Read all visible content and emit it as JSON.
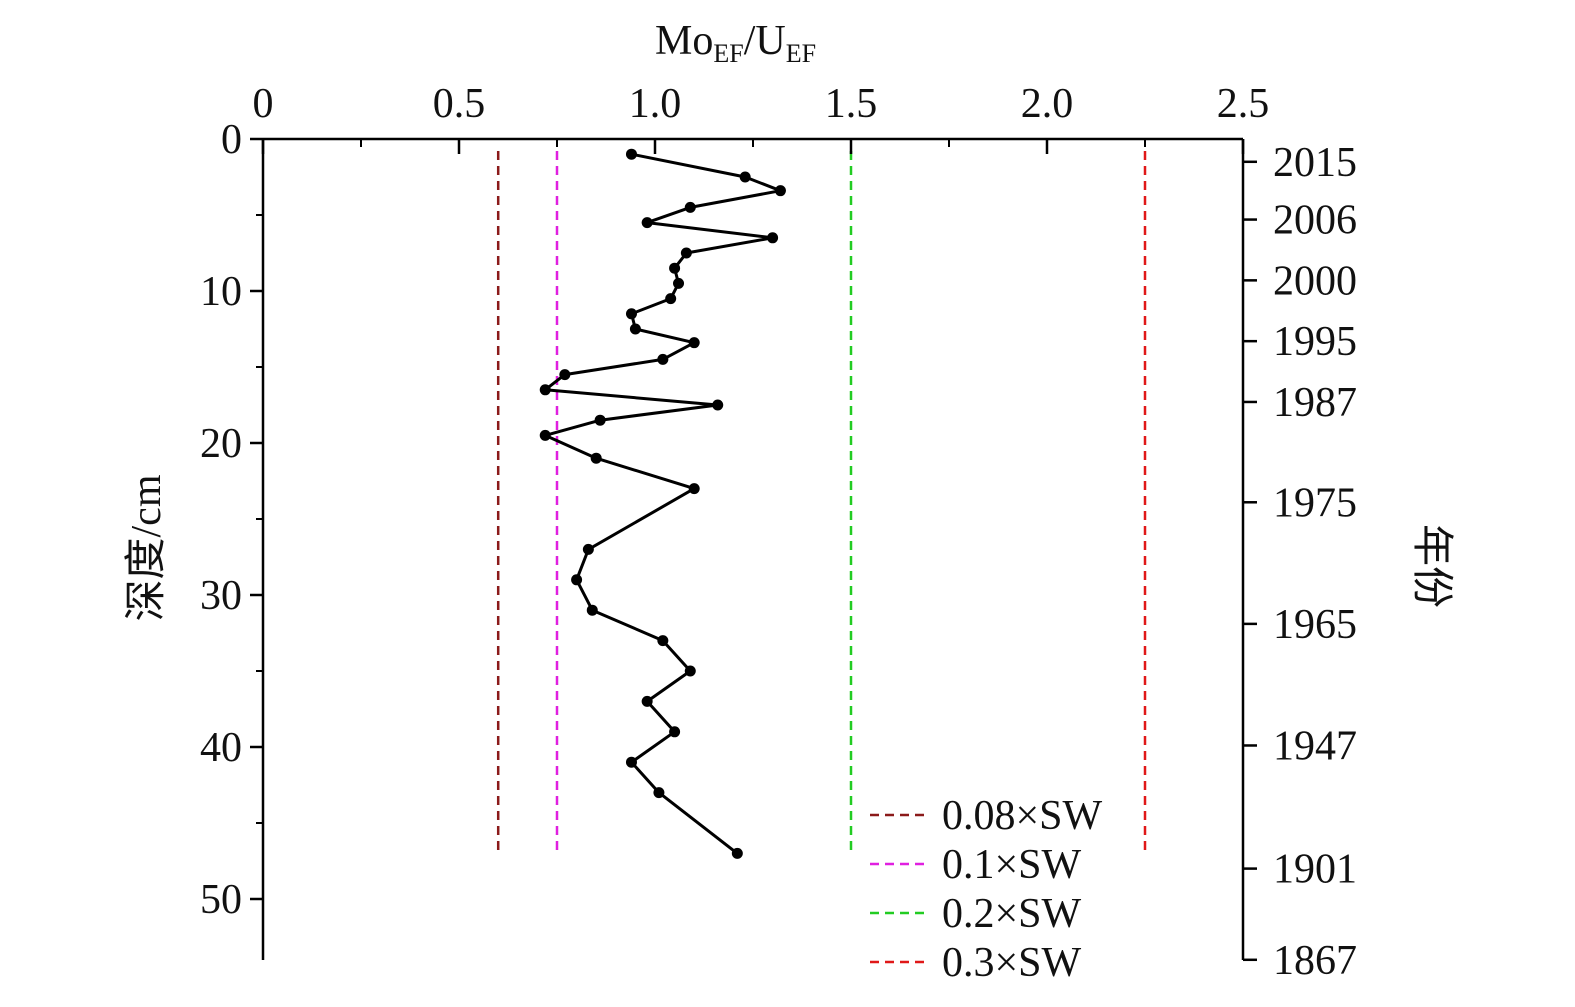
{
  "chart_data": {
    "type": "line",
    "xlabel": {
      "main": "Mo",
      "sub1": "EF",
      "sep": "/U",
      "sub2": "EF"
    },
    "ylabel": "深度/cm",
    "y2label": "年份",
    "xlim": [
      0,
      2.5
    ],
    "ylim": [
      0,
      54
    ],
    "x_ticks": [
      {
        "value": 0,
        "label": "0"
      },
      {
        "value": 0.5,
        "label": "0.5"
      },
      {
        "value": 1.0,
        "label": "1.0"
      },
      {
        "value": 1.5,
        "label": "1.5"
      },
      {
        "value": 2.0,
        "label": "2.0"
      },
      {
        "value": 2.5,
        "label": "2.5"
      }
    ],
    "y_ticks": [
      {
        "value": 0,
        "label": "0"
      },
      {
        "value": 10,
        "label": "10"
      },
      {
        "value": 20,
        "label": "20"
      },
      {
        "value": 30,
        "label": "30"
      },
      {
        "value": 40,
        "label": "40"
      },
      {
        "value": 50,
        "label": "50"
      }
    ],
    "y2_ticks": [
      {
        "depth": 1.5,
        "label": "2015"
      },
      {
        "depth": 5.3,
        "label": "2006"
      },
      {
        "depth": 9.3,
        "label": "2000"
      },
      {
        "depth": 13.3,
        "label": "1995"
      },
      {
        "depth": 17.3,
        "label": "1987"
      },
      {
        "depth": 23.9,
        "label": "1975"
      },
      {
        "depth": 31.9,
        "label": "1965"
      },
      {
        "depth": 39.9,
        "label": "1947"
      },
      {
        "depth": 48.0,
        "label": "1901"
      },
      {
        "depth": 54.0,
        "label": "1867"
      }
    ],
    "series": [
      {
        "color": "#000000",
        "points": [
          [
            0.94,
            1.0
          ],
          [
            1.23,
            2.5
          ],
          [
            1.32,
            3.4
          ],
          [
            1.09,
            4.5
          ],
          [
            0.98,
            5.5
          ],
          [
            1.3,
            6.5
          ],
          [
            1.08,
            7.5
          ],
          [
            1.05,
            8.5
          ],
          [
            1.06,
            9.5
          ],
          [
            1.04,
            10.5
          ],
          [
            0.94,
            11.5
          ],
          [
            0.95,
            12.5
          ],
          [
            1.1,
            13.4
          ],
          [
            1.02,
            14.5
          ],
          [
            0.77,
            15.5
          ],
          [
            0.72,
            16.5
          ],
          [
            1.16,
            17.5
          ],
          [
            0.86,
            18.5
          ],
          [
            0.72,
            19.5
          ],
          [
            0.85,
            21.0
          ],
          [
            1.1,
            23.0
          ],
          [
            0.83,
            27.0
          ],
          [
            0.8,
            29.0
          ],
          [
            0.84,
            31.0
          ],
          [
            1.02,
            33.0
          ],
          [
            1.09,
            35.0
          ],
          [
            0.98,
            37.0
          ],
          [
            1.05,
            39.0
          ],
          [
            0.94,
            41.0
          ],
          [
            1.01,
            43.0
          ],
          [
            1.21,
            47.0
          ]
        ]
      }
    ],
    "reference_lines": [
      {
        "name": "0.08×SW",
        "x": 0.6,
        "color": "#8b1a1a"
      },
      {
        "name": "0.1×SW",
        "x": 0.75,
        "color": "#e020e0"
      },
      {
        "name": "0.2×SW",
        "x": 1.5,
        "color": "#22cc22"
      },
      {
        "name": "0.3×SW",
        "x": 2.25,
        "color": "#e01818"
      }
    ],
    "reference_line_depth_range": [
      0,
      47
    ],
    "grid": false,
    "legend_position": "bottom-right"
  }
}
